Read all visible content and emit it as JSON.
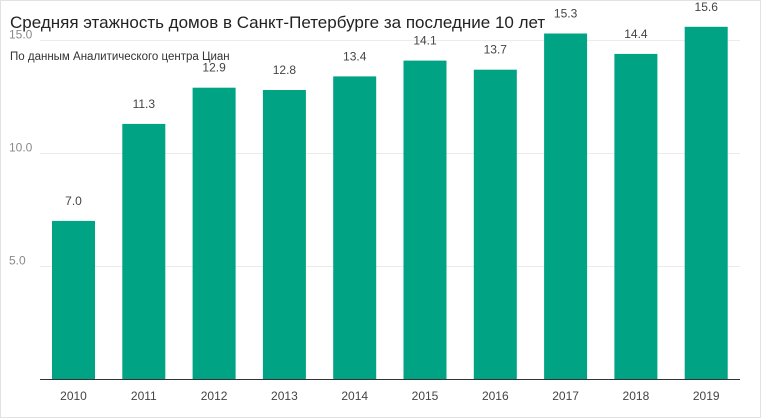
{
  "chart_data": {
    "type": "bar",
    "title": "Средняя этажность домов в Санкт-Петербурге за последние 10 лет",
    "subtitle": "По данным Аналитического центра Циан",
    "xlabel": "",
    "ylabel": "",
    "categories": [
      "2010",
      "2011",
      "2012",
      "2013",
      "2014",
      "2015",
      "2016",
      "2017",
      "2018",
      "2019"
    ],
    "values": [
      7.0,
      11.3,
      12.9,
      12.8,
      13.4,
      14.1,
      13.7,
      15.3,
      14.4,
      15.6
    ],
    "data_labels": [
      "7.0",
      "11.3",
      "12.9",
      "12.8",
      "13.4",
      "14.1",
      "13.7",
      "15.3",
      "14.4",
      "15.6"
    ],
    "ylim": [
      0,
      15.9
    ],
    "yticks": [
      5,
      10,
      15
    ],
    "ytick_labels": [
      "5.0",
      "10.0",
      "15.0"
    ],
    "grid": true,
    "legend": "none",
    "bar_color": "#00a383"
  }
}
